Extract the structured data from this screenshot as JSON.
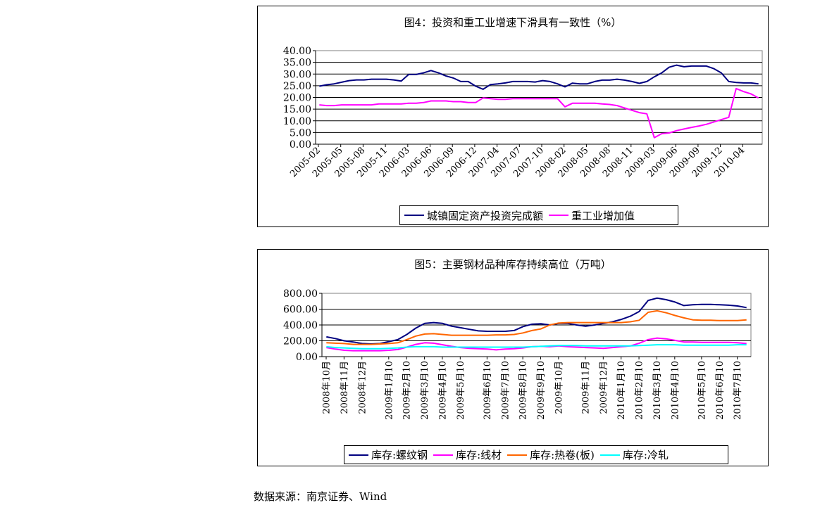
{
  "chart_data": [
    {
      "type": "line",
      "title": "图4：投资和重工业增速下滑具有一致性（%）",
      "ylim": [
        0,
        40
      ],
      "yticks": [
        "0.00",
        "5.00",
        "10.00",
        "15.00",
        "20.00",
        "25.00",
        "30.00",
        "35.00",
        "40.00"
      ],
      "x_tick_labels": [
        "2005-02",
        "2005-05",
        "2005-08",
        "2005-11",
        "2006-03",
        "2006-06",
        "2006-09",
        "2006-12",
        "2007-04",
        "2007-07",
        "2007-10",
        "2008-02",
        "2008-05",
        "2008-08",
        "2008-11",
        "2009-03",
        "2009-06",
        "2009-09",
        "2009-12",
        "2010-04"
      ],
      "grid": "horizontal",
      "legend_position": "bottom",
      "series": [
        {
          "name": "城镇固定资产投资完成额",
          "color": "#000080",
          "values": [
            24.8,
            25.4,
            25.8,
            26.5,
            27.2,
            27.5,
            27.5,
            27.8,
            27.8,
            27.8,
            27.5,
            27.0,
            29.8,
            29.8,
            30.5,
            31.5,
            30.5,
            29.2,
            28.3,
            26.8,
            26.8,
            24.8,
            23.5,
            25.5,
            25.8,
            26.2,
            26.8,
            26.8,
            26.8,
            26.6,
            27.2,
            26.8,
            25.8,
            24.5,
            26.1,
            25.8,
            25.8,
            26.8,
            27.4,
            27.4,
            27.8,
            27.4,
            26.8,
            26.0,
            26.8,
            28.8,
            30.5,
            32.9,
            33.8,
            33.1,
            33.4,
            33.4,
            33.4,
            32.3,
            30.5,
            26.8,
            26.4,
            26.2,
            26.2,
            25.8
          ]
        },
        {
          "name": "重工业增加值",
          "color": "#FF00FF",
          "values": [
            16.8,
            16.5,
            16.5,
            16.8,
            16.8,
            16.8,
            16.8,
            16.8,
            17.2,
            17.2,
            17.2,
            17.2,
            17.5,
            17.5,
            17.8,
            18.5,
            18.5,
            18.5,
            18.2,
            18.2,
            17.8,
            17.8,
            19.8,
            19.5,
            19.2,
            19.2,
            19.5,
            19.5,
            19.5,
            19.5,
            19.5,
            19.5,
            19.5,
            16.0,
            17.5,
            17.5,
            17.5,
            17.5,
            17.2,
            17.0,
            16.5,
            15.5,
            14.5,
            13.5,
            13.0,
            2.8,
            4.5,
            4.8,
            5.8,
            6.5,
            7.2,
            7.8,
            8.5,
            9.5,
            10.5,
            11.5,
            23.8,
            22.5,
            21.5,
            19.8
          ]
        }
      ]
    },
    {
      "type": "line",
      "title": "图5：主要钢材品种库存持续高位（万吨）",
      "ylim": [
        0,
        800
      ],
      "yticks": [
        "0.00",
        "200.00",
        "400.00",
        "600.00",
        "800.00"
      ],
      "x_tick_labels": [
        "2008年10月",
        "2008年11月",
        "2008年12月",
        "2009年1月10",
        "2009年2月10",
        "2009年3月10",
        "2009年4月10",
        "2009年5月10",
        "2009年6月10",
        "2009年7月10",
        "2009年8月10",
        "2009年9月10",
        "2009年10月",
        "2009年11月",
        "2009年12月",
        "2010年1月10",
        "2010年2月10",
        "2010年3月10",
        "2010年4月10",
        "2010年5月10",
        "2010年6月10",
        "2010年7月10"
      ],
      "grid": "horizontal",
      "legend_position": "bottom",
      "series": [
        {
          "name": "库存:螺纹钢",
          "color": "#000080",
          "values": [
            250,
            228,
            200,
            185,
            165,
            160,
            165,
            190,
            215,
            280,
            360,
            420,
            430,
            420,
            385,
            365,
            345,
            325,
            320,
            320,
            320,
            330,
            380,
            410,
            415,
            400,
            420,
            420,
            400,
            385,
            400,
            420,
            440,
            470,
            510,
            570,
            710,
            740,
            720,
            690,
            645,
            655,
            660,
            660,
            655,
            650,
            640,
            620
          ]
        },
        {
          "name": "库存:线材",
          "color": "#FF00FF",
          "values": [
            115,
            95,
            80,
            75,
            75,
            75,
            75,
            80,
            90,
            120,
            155,
            175,
            170,
            150,
            130,
            115,
            105,
            100,
            95,
            85,
            95,
            100,
            110,
            125,
            130,
            125,
            135,
            125,
            120,
            115,
            110,
            105,
            115,
            125,
            135,
            170,
            215,
            235,
            225,
            205,
            185,
            185,
            180,
            180,
            180,
            180,
            175,
            165
          ]
        },
        {
          "name": "库存:热卷(板)",
          "color": "#FF6600",
          "values": [
            175,
            170,
            165,
            155,
            155,
            155,
            160,
            165,
            175,
            215,
            260,
            285,
            290,
            280,
            270,
            270,
            270,
            270,
            270,
            275,
            275,
            280,
            300,
            330,
            350,
            400,
            425,
            430,
            430,
            430,
            430,
            430,
            430,
            430,
            440,
            460,
            560,
            580,
            555,
            520,
            490,
            465,
            460,
            460,
            455,
            455,
            455,
            465
          ]
        },
        {
          "name": "库存:冷轧",
          "color": "#00FFFF",
          "values": [
            125,
            115,
            110,
            105,
            100,
            100,
            100,
            105,
            110,
            120,
            125,
            125,
            125,
            120,
            120,
            120,
            120,
            120,
            120,
            120,
            120,
            120,
            120,
            125,
            130,
            135,
            140,
            140,
            140,
            135,
            135,
            135,
            135,
            135,
            135,
            140,
            145,
            150,
            150,
            150,
            145,
            145,
            145,
            145,
            145,
            145,
            150,
            150
          ]
        }
      ]
    }
  ],
  "source_text": "数据来源：南京证券、Wind"
}
